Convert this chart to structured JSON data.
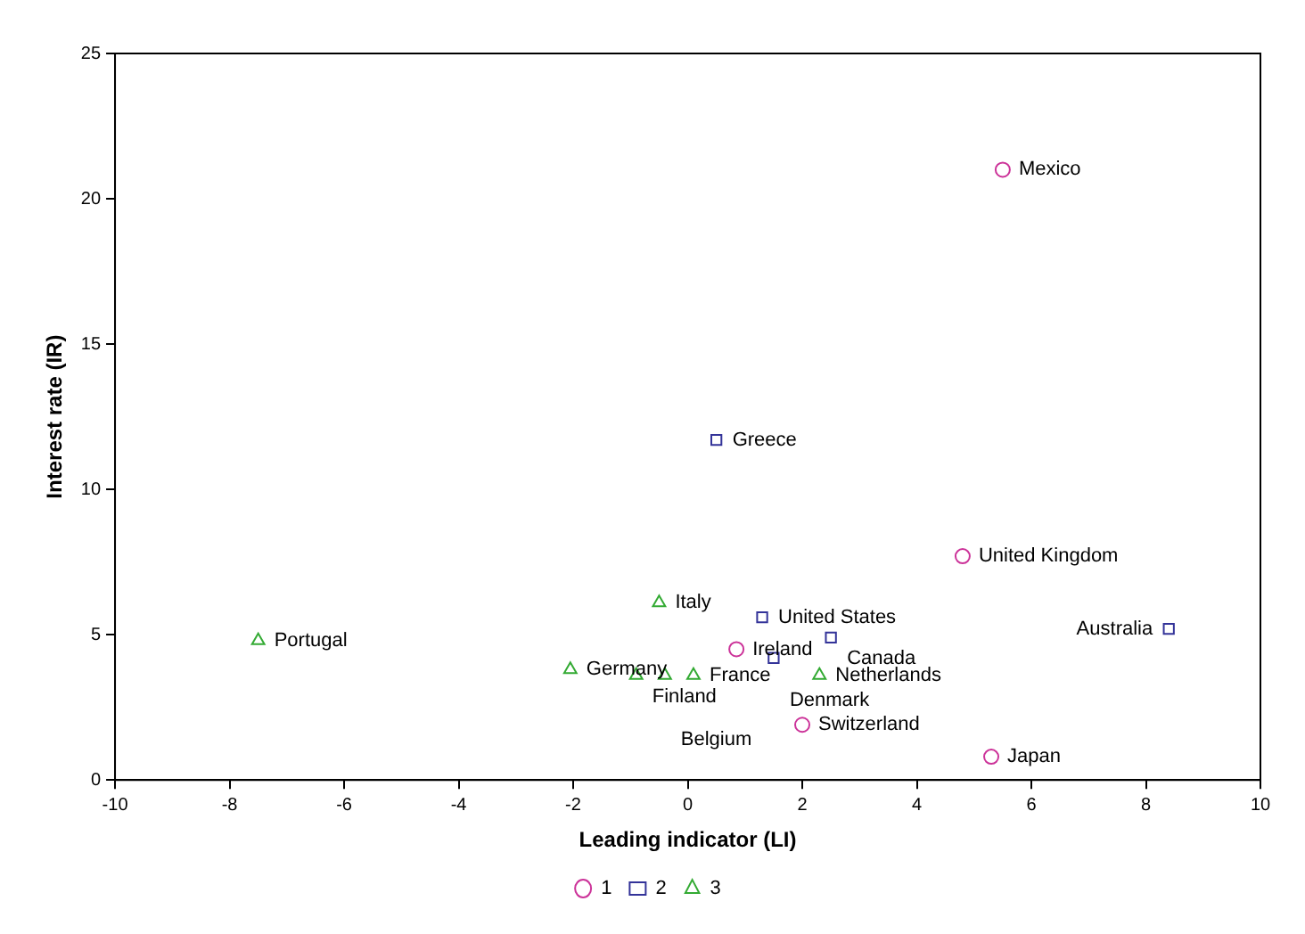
{
  "chart_data": {
    "type": "scatter",
    "xlabel": "Leading indicator (LI)",
    "ylabel": "Interest rate (IR)",
    "xlim": [
      -10,
      10
    ],
    "xticks": [
      -10,
      -8,
      -6,
      -4,
      -2,
      0,
      2,
      4,
      6,
      8,
      10
    ],
    "ylim": [
      0,
      25
    ],
    "yticks": [
      0,
      5,
      10,
      15,
      20,
      25
    ],
    "grid": false,
    "legend": "bottom",
    "series": [
      {
        "name": "1",
        "color": "#cc3399",
        "marker": "circle",
        "x": [
          5.5,
          4.8,
          2.0,
          5.3,
          0.85
        ],
        "values": [
          21.0,
          7.7,
          1.9,
          0.8,
          4.5
        ]
      },
      {
        "name": "2",
        "color": "#333399",
        "marker": "square",
        "x": [
          0.5,
          8.4,
          1.3,
          2.5,
          1.5
        ],
        "values": [
          11.7,
          5.2,
          5.6,
          4.9,
          4.2
        ]
      },
      {
        "name": "3",
        "color": "#33aa33",
        "marker": "triangle",
        "x": [
          -7.5,
          -0.5,
          -2.05,
          -0.9,
          -0.4,
          0.1,
          2.3
        ],
        "values": [
          4.8,
          6.1,
          3.8,
          3.6,
          3.6,
          3.6,
          3.6
        ]
      }
    ],
    "annotations": [
      {
        "text": "Mexico",
        "x": 5.5,
        "y": 21.0
      },
      {
        "text": "United Kingdom",
        "x": 4.8,
        "y": 7.7
      },
      {
        "text": "Switzerland",
        "x": 2.0,
        "y": 1.9
      },
      {
        "text": "Japan",
        "x": 5.3,
        "y": 0.8
      },
      {
        "text": "Ireland",
        "x": 0.85,
        "y": 4.5
      },
      {
        "text": "Greece",
        "x": 0.5,
        "y": 11.7
      },
      {
        "text": "Australia",
        "x": 8.4,
        "y": 5.2
      },
      {
        "text": "United States",
        "x": 1.3,
        "y": 5.6
      },
      {
        "text": "Canada",
        "x": 2.5,
        "y": 4.9
      },
      {
        "text": "Denmark",
        "x": 1.5,
        "y": 4.2
      },
      {
        "text": "Portugal",
        "x": -7.5,
        "y": 4.8
      },
      {
        "text": "Italy",
        "x": -0.5,
        "y": 6.1
      },
      {
        "text": "Germany",
        "x": -2.05,
        "y": 3.8
      },
      {
        "text": "Finland",
        "x": -0.9,
        "y": 3.6
      },
      {
        "text": "Belgium",
        "x": -0.4,
        "y": 3.6
      },
      {
        "text": "France",
        "x": 0.1,
        "y": 3.6
      },
      {
        "text": "Netherlands",
        "x": 2.3,
        "y": 3.6
      }
    ]
  }
}
